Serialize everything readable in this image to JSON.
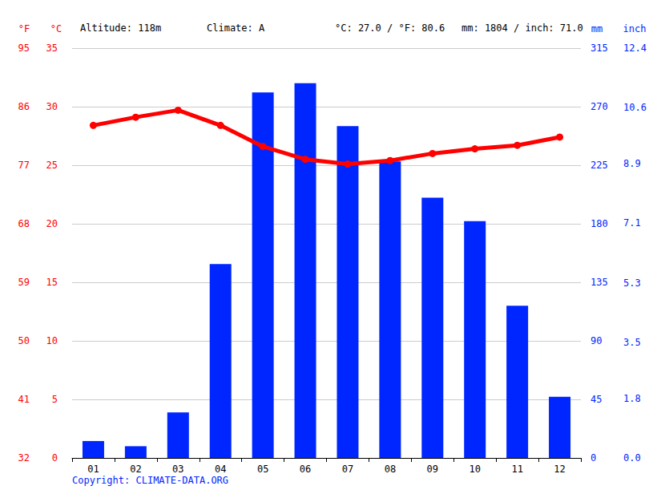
{
  "chart_data": {
    "type": "bar",
    "header": [
      "Altitude: 118m",
      "Climate: A",
      "°C: 27.0 / °F: 80.6",
      "mm: 1804 / inch: 71.0"
    ],
    "footer": "Copyright: CLIMATE-DATA.ORG",
    "categories": [
      "01",
      "02",
      "03",
      "04",
      "05",
      "06",
      "07",
      "08",
      "09",
      "10",
      "11",
      "12"
    ],
    "series": [
      {
        "type": "bar",
        "axis": "y2",
        "color": "#0026ff",
        "values": [
          13,
          9,
          35,
          149,
          281,
          288,
          255,
          228,
          200,
          182,
          117,
          47
        ]
      },
      {
        "type": "line",
        "axis": "y",
        "color": "#ff0000",
        "marker": "circle",
        "values": [
          28.4,
          29.1,
          29.7,
          28.4,
          26.6,
          25.5,
          25.1,
          25.4,
          26.0,
          26.4,
          26.7,
          27.4
        ]
      }
    ],
    "ylabel": "°C",
    "ylim": [
      0,
      35
    ],
    "yticks": [
      0,
      5,
      10,
      15,
      20,
      25,
      30,
      35
    ],
    "y2label": "mm",
    "y2lim": [
      0,
      315
    ],
    "y2ticks": [
      0,
      45,
      90,
      135,
      180,
      225,
      270,
      315
    ],
    "y3label": "°F",
    "y3lim": [
      32,
      95
    ],
    "y3ticks": [
      32,
      41,
      50,
      59,
      68,
      77,
      86,
      95
    ],
    "y4label": "inch",
    "y4lim": [
      0,
      12.4
    ],
    "y4ticks": [
      {
        "value": 0,
        "label": "0.0"
      },
      1.8,
      3.5,
      5.3,
      7.1,
      8.9,
      10.6,
      12.4
    ],
    "grid": true
  }
}
